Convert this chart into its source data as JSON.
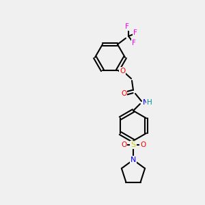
{
  "background_color": "#f0f0f0",
  "bond_color": "#000000",
  "colors": {
    "N": "#0000FF",
    "O": "#FF0000",
    "S": "#CCCC00",
    "F": "#FF00FF",
    "H": "#008B8B",
    "C": "#000000"
  },
  "figsize": [
    3.0,
    3.0
  ],
  "dpi": 100
}
